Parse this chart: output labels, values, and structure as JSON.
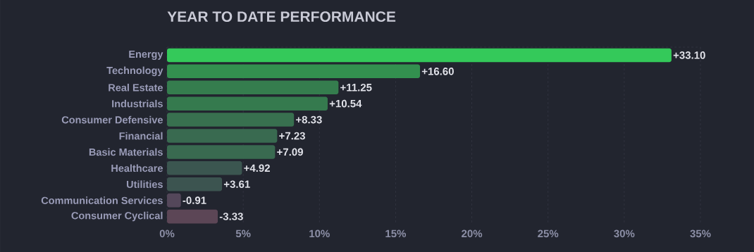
{
  "chart_data": {
    "type": "bar",
    "orientation": "horizontal",
    "title": "YEAR TO DATE PERFORMANCE",
    "categories": [
      "Energy",
      "Technology",
      "Real Estate",
      "Industrials",
      "Consumer Defensive",
      "Financial",
      "Basic Materials",
      "Healthcare",
      "Utilities",
      "Communication Services",
      "Consumer Cyclical"
    ],
    "values": [
      33.1,
      16.6,
      11.25,
      10.54,
      8.33,
      7.23,
      7.09,
      4.92,
      3.61,
      -0.91,
      -3.33
    ],
    "base": [
      0,
      0,
      0,
      0,
      0,
      0,
      0,
      0,
      0,
      0.91,
      3.33
    ],
    "value_labels": [
      "+33.10",
      "+16.60",
      "+11.25",
      "+10.54",
      "+8.33",
      "+7.23",
      "+7.09",
      "+4.92",
      "+3.61",
      "-0.91",
      "-3.33"
    ],
    "colors": [
      "#34c95a",
      "#33904f",
      "#357d4e",
      "#357a4e",
      "#38704f",
      "#396a50",
      "#396a50",
      "#3b5650",
      "#3c5450",
      "#54475a",
      "#5c4656"
    ],
    "xlim": [
      0,
      35
    ],
    "xticks": [
      {
        "value": 0,
        "label": "0%"
      },
      {
        "value": 5,
        "label": "5%"
      },
      {
        "value": 10,
        "label": "10%"
      },
      {
        "value": 15,
        "label": "15%"
      },
      {
        "value": 20,
        "label": "20%"
      },
      {
        "value": 25,
        "label": "25%"
      },
      {
        "value": 30,
        "label": "30%"
      },
      {
        "value": 35,
        "label": "35%"
      }
    ],
    "grid": "x"
  }
}
